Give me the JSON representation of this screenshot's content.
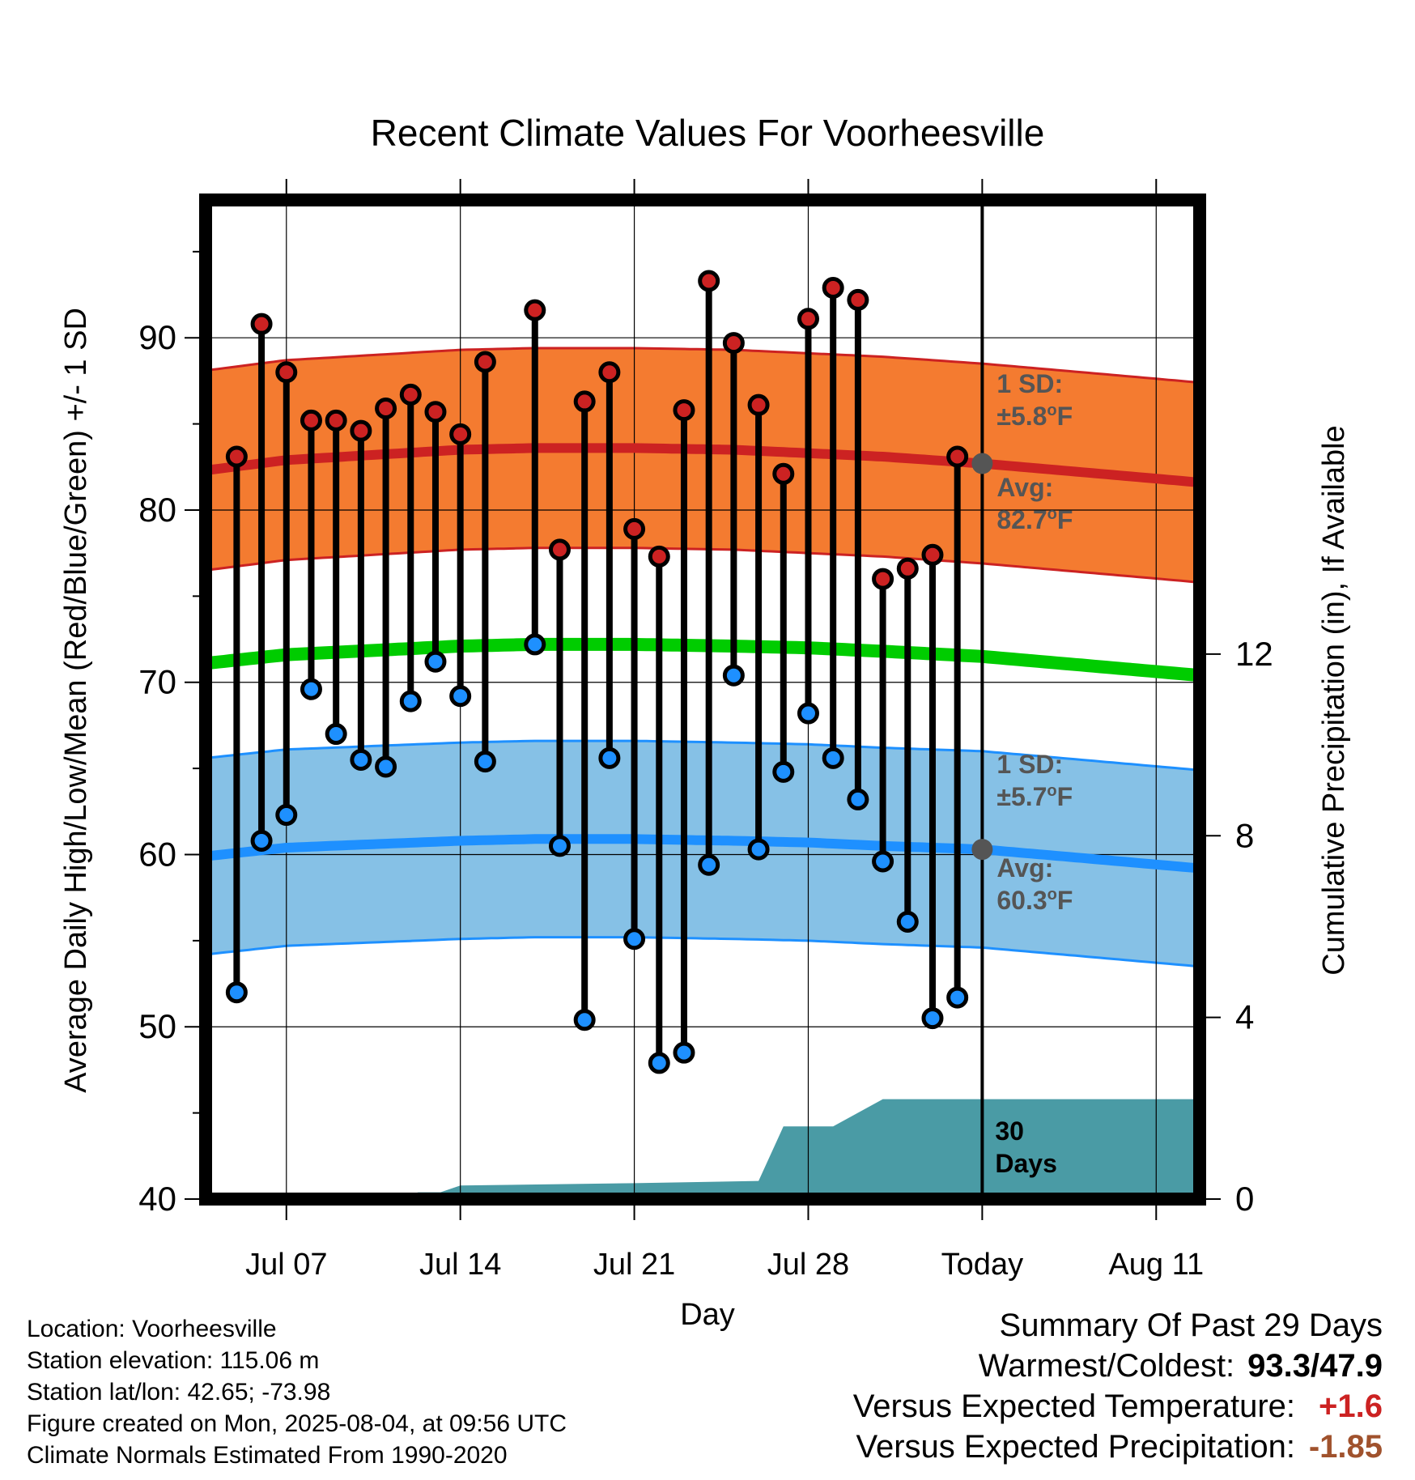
{
  "chart_data": {
    "type": "line",
    "title": "Recent Climate Values For Voorheesville",
    "xlabel": "Day",
    "ylabel": "Average Daily High/Low/Mean (Red/Blue/Green) +/- 1 SD",
    "y2label": "Cumulative Precipitation (in), If Available",
    "ylim": [
      40,
      98
    ],
    "y2lim": [
      0,
      22
    ],
    "yticks": [
      "40",
      "50",
      "60",
      "70",
      "80",
      "90"
    ],
    "y2ticks": [
      "0",
      "4",
      "8",
      "12"
    ],
    "x_ticks": [
      {
        "day": 7,
        "label": "Jul 07"
      },
      {
        "day": 14,
        "label": "Jul 14"
      },
      {
        "day": 21,
        "label": "Jul 21"
      },
      {
        "day": 28,
        "label": "Jul 28"
      },
      {
        "day": 35,
        "label": "Today"
      },
      {
        "day": 42,
        "label": "Aug 11"
      }
    ],
    "x_range_days": [
      3.75,
      43.75
    ],
    "today_day": 35,
    "grid": true,
    "daily": {
      "days": [
        5,
        6,
        7,
        8,
        9,
        10,
        11,
        12,
        13,
        14,
        15,
        17,
        18,
        19,
        20,
        21,
        22,
        23,
        24,
        25,
        26,
        27,
        28,
        29,
        30,
        31,
        32,
        33,
        34
      ],
      "high": [
        83.1,
        90.8,
        88.0,
        85.2,
        85.2,
        84.6,
        85.9,
        86.7,
        85.7,
        84.4,
        88.6,
        91.6,
        77.7,
        86.3,
        88.0,
        78.9,
        77.3,
        85.8,
        93.3,
        89.7,
        86.1,
        82.1,
        91.1,
        92.9,
        92.2,
        76.0,
        76.6,
        77.4,
        83.1
      ],
      "low": [
        52.0,
        60.8,
        62.3,
        69.6,
        67.0,
        65.5,
        65.1,
        68.9,
        71.2,
        69.2,
        65.4,
        72.2,
        60.5,
        50.4,
        65.6,
        55.1,
        47.9,
        48.5,
        59.4,
        70.4,
        60.3,
        64.8,
        68.2,
        65.6,
        63.2,
        59.6,
        56.1,
        50.5,
        51.7
      ]
    },
    "normals": {
      "days": [
        3.75,
        7,
        14,
        17,
        21,
        25,
        28,
        31,
        35,
        39,
        43.75
      ],
      "high_avg": [
        82.3,
        82.9,
        83.5,
        83.6,
        83.6,
        83.5,
        83.3,
        83.1,
        82.7,
        82.2,
        81.6
      ],
      "low_avg": [
        59.9,
        60.4,
        60.8,
        60.9,
        60.9,
        60.8,
        60.7,
        60.5,
        60.3,
        59.8,
        59.2
      ],
      "mean_avg": [
        71.1,
        71.6,
        72.1,
        72.2,
        72.2,
        72.1,
        72.0,
        71.8,
        71.5,
        71.0,
        70.4
      ],
      "high_sd": 5.8,
      "low_sd": 5.7
    },
    "precip_cumulative": {
      "days": [
        3.75,
        11.5,
        12.3,
        13.2,
        14.0,
        21.0,
        26.0,
        27.0,
        29.0,
        31.0,
        32.0,
        43.75
      ],
      "values": [
        0,
        0,
        0.15,
        0.15,
        0.3,
        0.35,
        0.4,
        1.6,
        1.6,
        2.2,
        2.2,
        2.2
      ]
    },
    "annotations": {
      "high_sd_line1": "1 SD:",
      "high_sd_line2": "±5.8",
      "high_avg_line1": "Avg:",
      "high_avg_line2": "82.7",
      "low_sd_line1": "1 SD:",
      "low_sd_line2": "±5.7",
      "low_avg_line1": "Avg:",
      "low_avg_line2": "60.3",
      "degree_o": "o",
      "degree_unit": "F",
      "precip_days_line1": "30",
      "precip_days_line2": "Days"
    },
    "colors": {
      "high_band": "#f47b30",
      "high_line": "#cc2222",
      "low_band": "#86c1e6",
      "low_line": "#1e90ff",
      "mean_line": "#00cc00",
      "precip": "#4a9ba5",
      "high_marker": "#cc2222",
      "low_marker": "#1e90ff",
      "annotation": "#555555",
      "today_marker": "#555555"
    }
  },
  "info": {
    "location": "Location: Voorheesville",
    "elevation": "Station elevation: 115.06 m",
    "latlon": "Station lat/lon: 42.65; -73.98",
    "created": "Figure created on Mon, 2025-08-04, at 09:56 UTC",
    "normals": "Climate Normals Estimated From 1990-2020"
  },
  "summary": {
    "title": "Summary Of Past 29 Days",
    "warmest_label": "Warmest/Coldest:",
    "warmest_value": "93.3/47.9",
    "temp_label": "Versus Expected Temperature:",
    "temp_value": "+1.6",
    "temp_color": "#cc2222",
    "precip_label": "Versus Expected Precipitation:",
    "precip_value": "-1.85",
    "precip_color": "#a0522d"
  }
}
